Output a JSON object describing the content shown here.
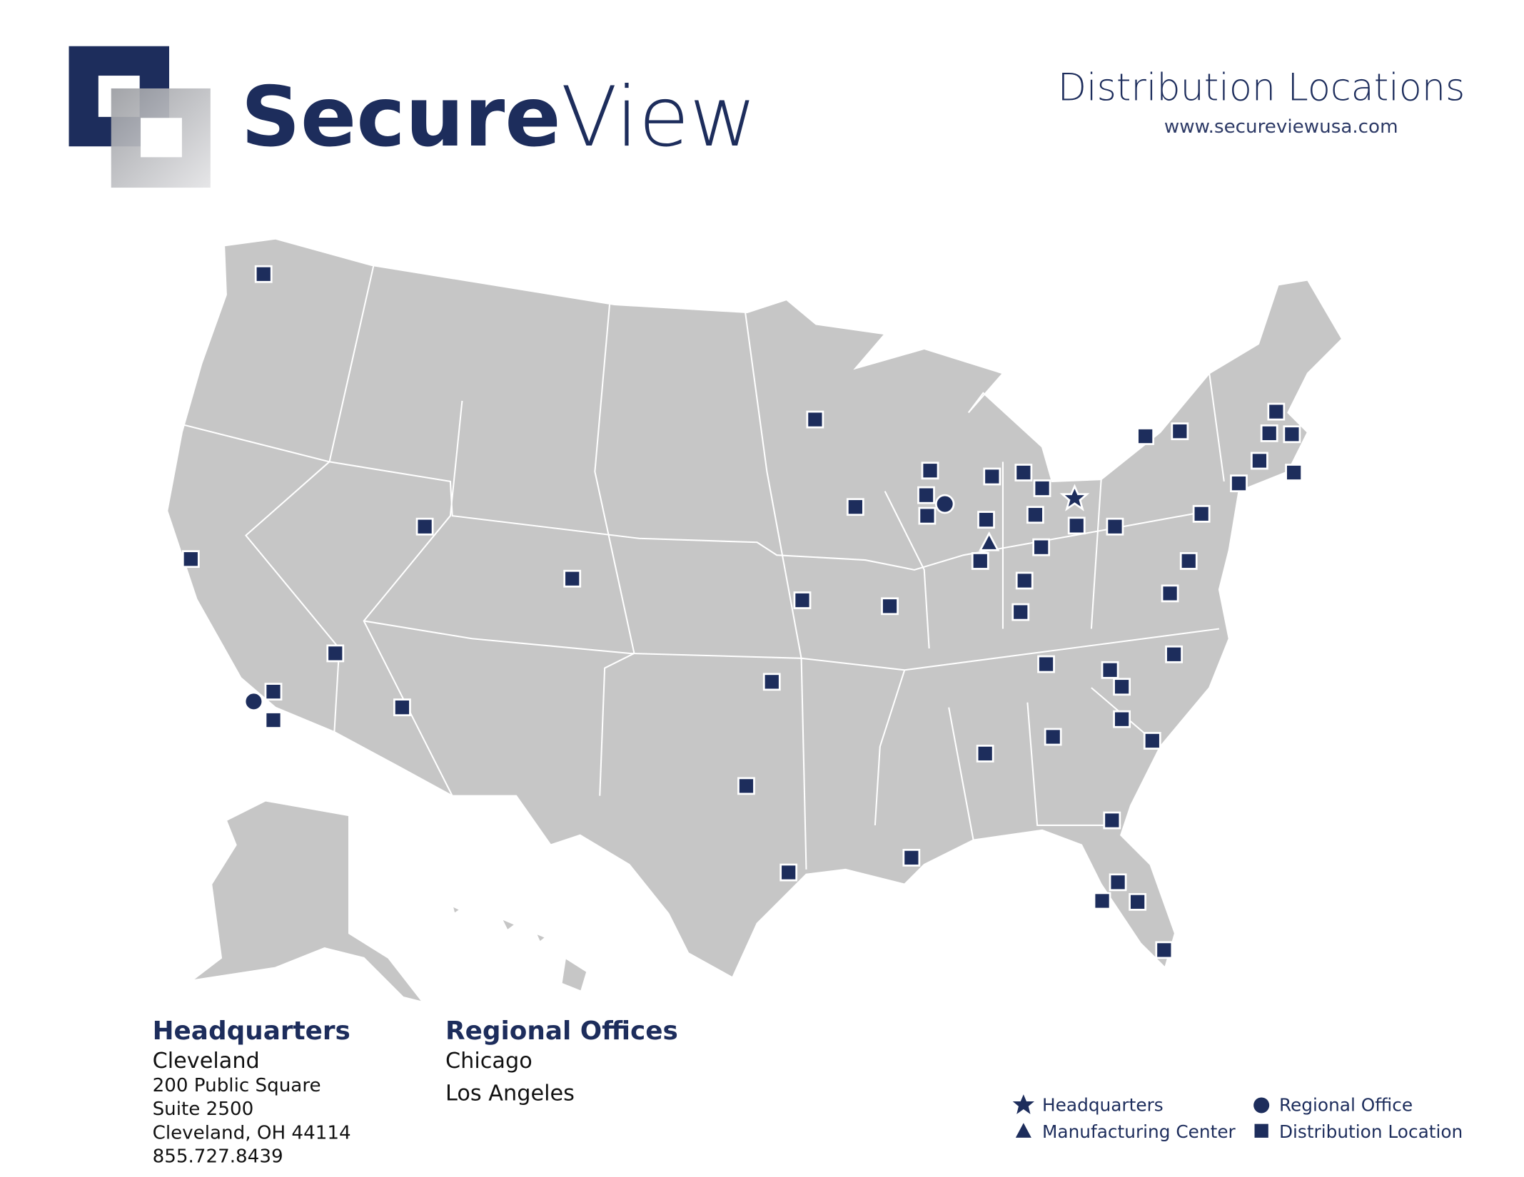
{
  "header": {
    "logo": {
      "bold": "Secure",
      "light": "View"
    },
    "title": "Distribution Locations",
    "url": "www.secureviewusa.com"
  },
  "headquarters": {
    "heading": "Headquarters",
    "city": "Cleveland",
    "address": [
      "200 Public Square",
      "Suite 2500",
      "Cleveland, OH 44114",
      "855.727.8439"
    ]
  },
  "regional_offices": {
    "heading": "Regional Offices",
    "cities": [
      "Chicago",
      "Los Angeles"
    ]
  },
  "legend": [
    "Headquarters",
    "Manufacturing Center",
    "Regional Office",
    "Distribution Location"
  ]
}
